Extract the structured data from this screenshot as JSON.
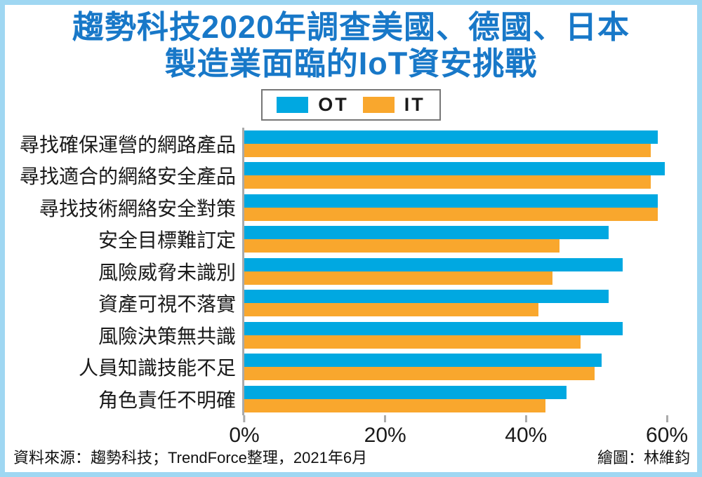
{
  "theme": {
    "frame_border": "#9FD7F2",
    "title_color": "#1878C8",
    "ot_color": "#00A8E1",
    "it_color": "#F9A72D",
    "axis_color": "#AAAAAA"
  },
  "title": {
    "line1": "趨勢科技2020年調查美國、德國、日本",
    "line2": "製造業面臨的IoT資安挑戰"
  },
  "legend": {
    "items": [
      {
        "label": "OT",
        "color": "#00A8E1"
      },
      {
        "label": "IT",
        "color": "#F9A72D"
      }
    ]
  },
  "chart_data": {
    "type": "bar",
    "orientation": "horizontal",
    "title": "趨勢科技2020年調查美國、德國、日本製造業面臨的IoT資安挑戰",
    "categories": [
      "尋找確保運營的網路產品",
      "尋找適合的網絡安全產品",
      "尋找技術網絡安全對策",
      "安全目標難訂定",
      "風險威脅未識別",
      "資產可視不落實",
      "風險決策無共識",
      "人員知識技能不足",
      "角色責任不明確"
    ],
    "series": [
      {
        "name": "OT",
        "color": "#00A8E1",
        "values": [
          59,
          60,
          59,
          52,
          54,
          52,
          54,
          51,
          46
        ]
      },
      {
        "name": "IT",
        "color": "#F9A72D",
        "values": [
          58,
          58,
          59,
          45,
          44,
          42,
          48,
          50,
          43
        ]
      }
    ],
    "unit": "%",
    "xlim": [
      0,
      60
    ],
    "x_ticks": [
      "0%",
      "20%",
      "40%",
      "60%"
    ],
    "grid": false,
    "legend_position": "top"
  },
  "footer": {
    "source": "資料來源：趨勢科技；TrendForce整理，2021年6月",
    "author": "繪圖：林維鈞"
  }
}
